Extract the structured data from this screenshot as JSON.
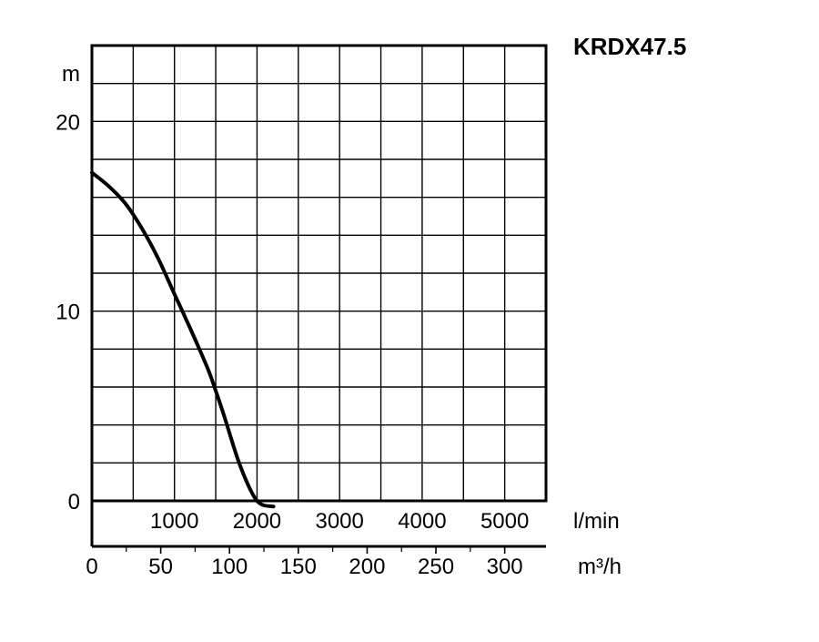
{
  "chart_data": {
    "type": "line",
    "title": "KRDX47.5",
    "y_unit": "m",
    "x_unit_primary": "l/min",
    "x_unit_secondary": "m³/h",
    "y_ticks": [
      {
        "value": 0,
        "label": "0"
      },
      {
        "value": 10,
        "label": "10"
      },
      {
        "value": 20,
        "label": "20"
      }
    ],
    "x_ticks_primary": [
      {
        "value": 1000,
        "label": "1000"
      },
      {
        "value": 2000,
        "label": "2000"
      },
      {
        "value": 3000,
        "label": "3000"
      },
      {
        "value": 4000,
        "label": "4000"
      },
      {
        "value": 5000,
        "label": "5000"
      }
    ],
    "x_ticks_secondary": [
      {
        "value": 0,
        "label": "0"
      },
      {
        "value": 50,
        "label": "50"
      },
      {
        "value": 100,
        "label": "100"
      },
      {
        "value": 150,
        "label": "150"
      },
      {
        "value": 200,
        "label": "200"
      },
      {
        "value": 250,
        "label": "250"
      },
      {
        "value": 300,
        "label": "300"
      }
    ],
    "xlim": [
      0,
      5500
    ],
    "ylim": [
      0,
      24
    ],
    "grid": true,
    "grid_x_step": 500,
    "grid_y_step": 2,
    "series": [
      {
        "x": [
          0,
          200,
          400,
          600,
          800,
          1000,
          1200,
          1400,
          1500,
          1600,
          1800,
          2000,
          2200
        ],
        "y": [
          17.3,
          16.6,
          15.7,
          14.4,
          12.8,
          10.9,
          9.0,
          7.0,
          5.8,
          4.5,
          1.8,
          0.0,
          -0.3
        ]
      }
    ],
    "line_color": "#000000"
  }
}
